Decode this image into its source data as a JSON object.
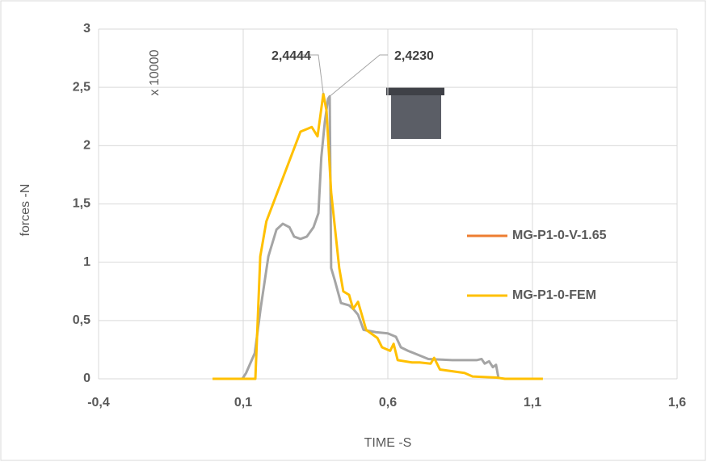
{
  "chart_data": {
    "type": "line",
    "x_label": "TIME -S",
    "y_label": "forces -N",
    "y_multiplier": "x 10000",
    "xlim": [
      -0.4,
      1.6
    ],
    "xticks": [
      {
        "value": -0.4,
        "label": "-0,4"
      },
      {
        "value": 0.1,
        "label": "0,1"
      },
      {
        "value": 0.6,
        "label": "0,6"
      },
      {
        "value": 1.1,
        "label": "1,1"
      },
      {
        "value": 1.6,
        "label": "1,6"
      }
    ],
    "ylim": [
      0,
      3
    ],
    "yticks": [
      0,
      {
        "value": 0.5,
        "label": "0,5"
      },
      1,
      {
        "value": 1.5,
        "label": "1,5"
      },
      2,
      {
        "value": 2.5,
        "label": "2,5"
      },
      3
    ],
    "grid": true,
    "legend": "right",
    "series": [
      {
        "name": "MG-P1-0-V-1.65",
        "color": "#ed7d31",
        "line_color": "#a5a5a5",
        "x": [
          0.097,
          0.11,
          0.14,
          0.16,
          0.187,
          0.215,
          0.237,
          0.26,
          0.276,
          0.298,
          0.32,
          0.343,
          0.36,
          0.37,
          0.382,
          0.393,
          0.399,
          0.404,
          0.416,
          0.438,
          0.466,
          0.48,
          0.497,
          0.516,
          0.558,
          0.6,
          0.628,
          0.645,
          0.67,
          0.71,
          0.74,
          0.823,
          0.907,
          0.924,
          0.935,
          0.95,
          0.963,
          0.974,
          0.983
        ],
        "values": [
          0,
          0.05,
          0.22,
          0.6,
          1.05,
          1.28,
          1.33,
          1.3,
          1.22,
          1.2,
          1.22,
          1.3,
          1.42,
          1.9,
          2.2,
          2.4,
          2.423,
          0.95,
          0.85,
          0.65,
          0.63,
          0.6,
          0.55,
          0.42,
          0.4,
          0.39,
          0.36,
          0.27,
          0.24,
          0.2,
          0.17,
          0.16,
          0.16,
          0.17,
          0.13,
          0.15,
          0.1,
          0.12,
          0
        ]
      },
      {
        "name": "MG-P1-0-FEM",
        "color": "#ffc000",
        "x": [
          -0.006,
          0.142,
          0.159,
          0.18,
          0.298,
          0.337,
          0.357,
          0.377,
          0.388,
          0.404,
          0.432,
          0.446,
          0.466,
          0.48,
          0.497,
          0.51,
          0.525,
          0.564,
          0.58,
          0.608,
          0.62,
          0.634,
          0.684,
          0.71,
          0.748,
          0.76,
          0.78,
          0.865,
          0.893,
          0.977,
          1.005,
          1.136
        ],
        "values": [
          0,
          0,
          1.05,
          1.35,
          2.12,
          2.16,
          2.08,
          2.4444,
          2.3,
          1.6,
          0.95,
          0.75,
          0.72,
          0.6,
          0.66,
          0.55,
          0.42,
          0.35,
          0.27,
          0.24,
          0.3,
          0.16,
          0.14,
          0.14,
          0.13,
          0.18,
          0.08,
          0.05,
          0.02,
          0.01,
          0,
          0
        ]
      }
    ],
    "annotations": [
      {
        "label": "2,4444",
        "value": 2.4444,
        "x": 0.377
      },
      {
        "label": "2,4230",
        "value": 2.423,
        "x": 0.399
      }
    ]
  }
}
